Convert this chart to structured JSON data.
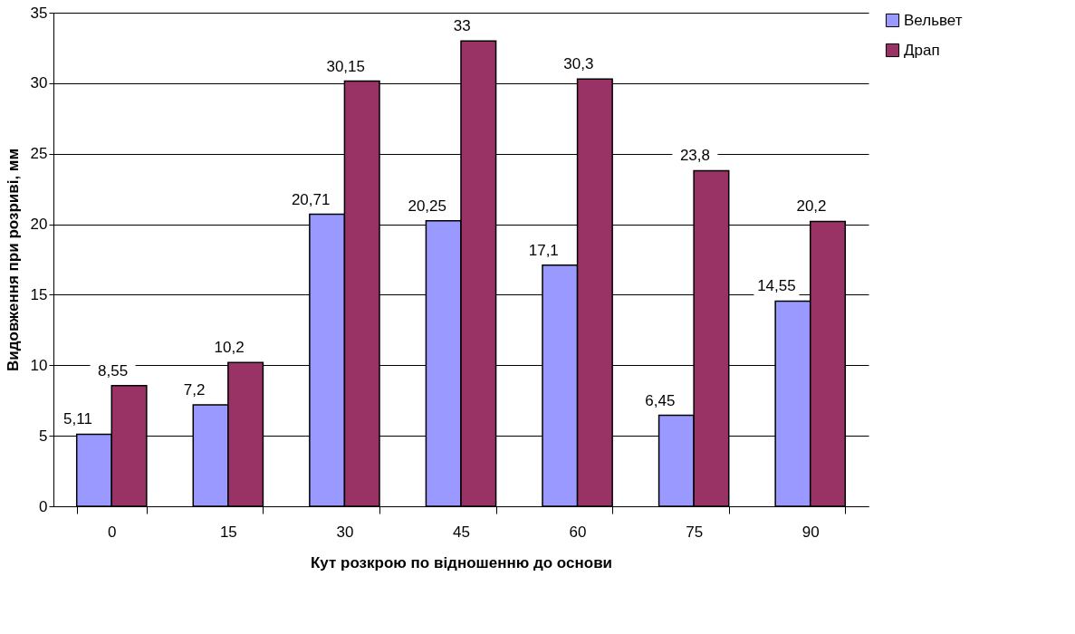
{
  "chart_data": {
    "type": "bar",
    "xlabel": "Кут розкрою по відношенню до основи",
    "ylabel": "Видовження при розриві, мм",
    "categories": [
      "0",
      "15",
      "30",
      "45",
      "60",
      "75",
      "90"
    ],
    "series": [
      {
        "name": "Вельвет",
        "color": "#9999ff",
        "values": [
          5.11,
          7.2,
          20.71,
          20.25,
          17.1,
          6.45,
          14.55
        ],
        "value_labels": [
          "5,11",
          "7,2",
          "20,71",
          "20,25",
          "17,1",
          "6,45",
          "14,55"
        ]
      },
      {
        "name": "Драп",
        "color": "#993366",
        "values": [
          8.55,
          10.2,
          30.15,
          33,
          30.3,
          23.8,
          20.2
        ],
        "value_labels": [
          "8,55",
          "10,2",
          "30,15",
          "33",
          "30,3",
          "23,8",
          "20,2"
        ]
      }
    ],
    "ylim": [
      0,
      35
    ],
    "yticks": [
      0,
      5,
      10,
      15,
      20,
      25,
      30,
      35
    ],
    "grid": "y",
    "legend": "right"
  }
}
